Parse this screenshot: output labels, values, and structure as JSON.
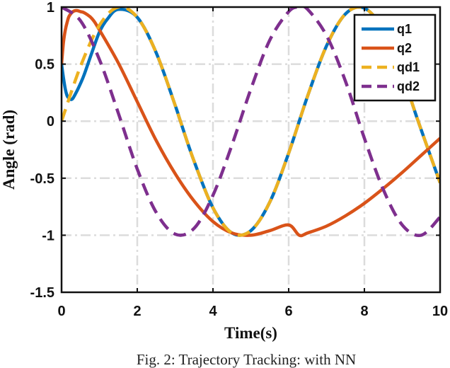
{
  "chart_data": {
    "type": "line",
    "title": "",
    "xlabel": "Time(s)",
    "ylabel": "Angle (rad)",
    "xlim": [
      0,
      10
    ],
    "ylim": [
      -1.5,
      1
    ],
    "xticks": [
      0,
      2,
      4,
      6,
      8,
      10
    ],
    "yticks": [
      1,
      0.5,
      0,
      -0.5,
      -1,
      -1.5
    ],
    "xtick_labels": [
      "0",
      "2",
      "4",
      "6",
      "8",
      "10"
    ],
    "ytick_labels": [
      "1",
      "0.5",
      "0",
      "-0.5",
      "-1",
      "-1.5"
    ],
    "grid": true,
    "legend_position": "top-right",
    "series": [
      {
        "name": "q1",
        "color": "#0072BD",
        "style": "solid",
        "x": [
          0,
          0.05,
          0.1,
          0.15,
          0.2,
          0.25,
          0.3,
          0.4,
          0.5,
          0.6,
          0.8,
          1.0,
          1.2,
          1.5,
          2.0,
          2.5,
          3.0,
          3.14,
          3.5,
          4.0,
          4.5,
          5.0,
          5.5,
          6.0,
          6.5,
          7.0,
          7.5,
          8.0,
          8.5,
          9.0,
          9.42,
          10.0
        ],
        "y": [
          0.5,
          0.38,
          0.28,
          0.22,
          0.2,
          0.19,
          0.2,
          0.26,
          0.33,
          0.41,
          0.6,
          0.78,
          0.89,
          0.98,
          0.91,
          0.6,
          0.14,
          0.0,
          -0.35,
          -0.76,
          -0.98,
          -0.96,
          -0.71,
          -0.28,
          0.22,
          0.66,
          0.94,
          0.99,
          0.8,
          0.41,
          0.0,
          -0.54
        ]
      },
      {
        "name": "q2",
        "color": "#D95319",
        "style": "solid",
        "x": [
          0,
          0.05,
          0.1,
          0.15,
          0.2,
          0.3,
          0.4,
          0.5,
          0.6,
          0.8,
          1.0,
          1.5,
          2.0,
          2.5,
          3.0,
          3.5,
          4.0,
          4.5,
          5.0,
          5.5,
          6.0,
          6.28,
          6.5,
          7.0,
          7.5,
          8.0,
          8.5,
          9.0,
          9.5,
          10.0
        ],
        "y": [
          0.5,
          0.69,
          0.8,
          0.87,
          0.92,
          0.96,
          0.97,
          0.96,
          0.95,
          0.9,
          0.8,
          0.51,
          0.17,
          -0.17,
          -0.46,
          -0.7,
          -0.88,
          -0.98,
          -1.0,
          -0.96,
          -0.91,
          -1.0,
          -0.98,
          -0.92,
          -0.83,
          -0.72,
          -0.59,
          -0.45,
          -0.3,
          -0.15
        ]
      },
      {
        "name": "qd1",
        "color": "#EDB120",
        "style": "dashed",
        "x": [
          0,
          0.5,
          1.0,
          1.5,
          2.0,
          2.5,
          3.0,
          3.14,
          3.5,
          4.0,
          4.5,
          5.0,
          5.5,
          6.0,
          6.5,
          7.0,
          7.5,
          8.0,
          8.5,
          9.0,
          9.42,
          10.0
        ],
        "y": [
          0.0,
          0.48,
          0.84,
          1.0,
          0.91,
          0.6,
          0.14,
          0.0,
          -0.35,
          -0.76,
          -0.98,
          -0.96,
          -0.71,
          -0.28,
          0.22,
          0.66,
          0.94,
          0.99,
          0.8,
          0.41,
          0.0,
          -0.54
        ]
      },
      {
        "name": "qd2",
        "color": "#7E2F8E",
        "style": "dashed",
        "x": [
          0,
          0.5,
          1.0,
          1.5,
          2.0,
          2.5,
          3.0,
          3.5,
          4.0,
          4.5,
          5.0,
          5.5,
          6.0,
          6.28,
          6.5,
          7.0,
          7.5,
          8.0,
          8.5,
          9.0,
          9.5,
          10.0
        ],
        "y": [
          1.0,
          0.88,
          0.54,
          0.07,
          -0.42,
          -0.8,
          -0.99,
          -0.94,
          -0.65,
          -0.21,
          0.28,
          0.71,
          0.96,
          1.0,
          0.98,
          0.75,
          0.35,
          -0.15,
          -0.6,
          -0.91,
          -1.0,
          -0.84
        ]
      }
    ]
  },
  "caption": "Fig. 2: Trajectory Tracking: with NN"
}
